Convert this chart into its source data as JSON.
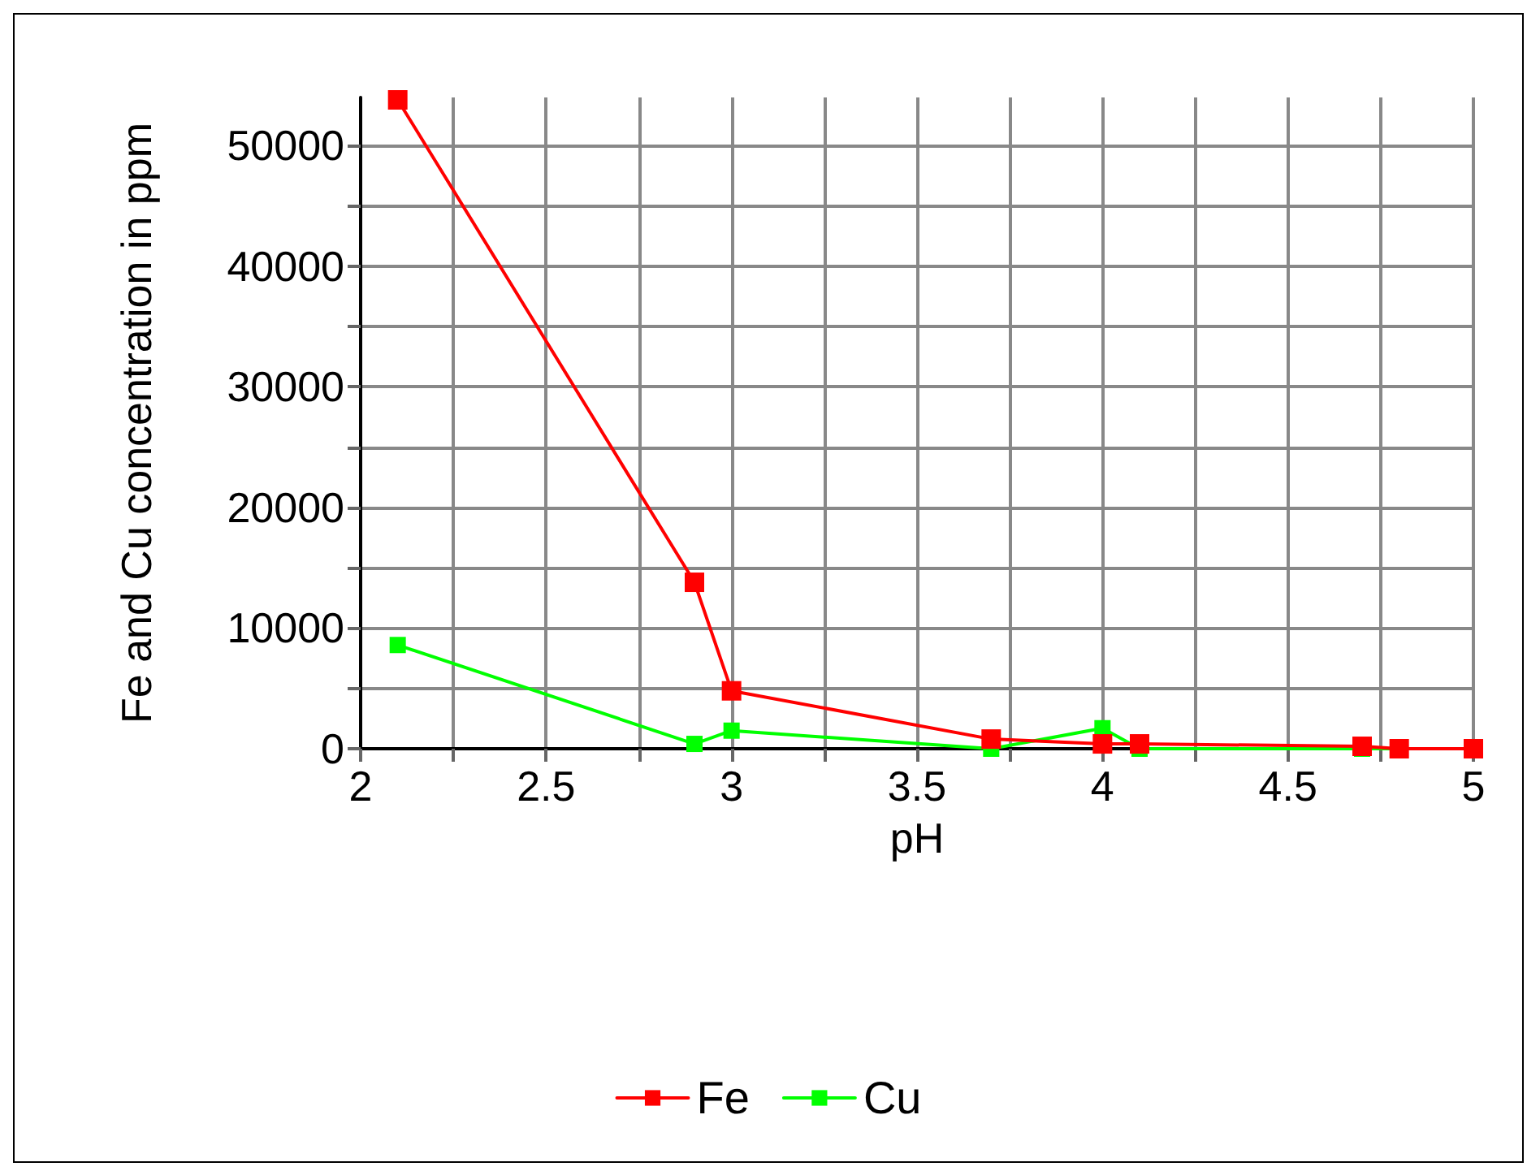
{
  "chart_data": {
    "type": "line",
    "xlabel": "pH",
    "ylabel": "Fe and Cu concentration in ppm",
    "x": [
      2.1,
      2.9,
      3.0,
      3.7,
      4.0,
      4.1,
      4.7,
      4.8,
      5.0
    ],
    "series": [
      {
        "name": "Fe",
        "color": "#ff0000",
        "values": [
          53800,
          13800,
          4800,
          800,
          400,
          400,
          200,
          0,
          0
        ]
      },
      {
        "name": "Cu",
        "color": "#00ff00",
        "values": [
          8600,
          400,
          1500,
          0,
          1700,
          0,
          0,
          0,
          0
        ]
      }
    ],
    "xlim": [
      2,
      5.0
    ],
    "xticks": [
      2,
      {
        "value": 2.25,
        "label": null
      },
      2.5,
      {
        "value": 2.75,
        "label": null
      },
      3,
      {
        "value": 3.25,
        "label": null
      },
      3.5,
      {
        "value": 3.75,
        "label": null
      },
      4,
      {
        "value": 4.25,
        "label": null
      },
      4.5,
      {
        "value": 4.75,
        "label": null
      },
      5
    ],
    "ylim": [
      0,
      54000
    ],
    "yticks": [
      0,
      {
        "value": 5000,
        "label": null
      },
      10000,
      {
        "value": 15000,
        "label": null
      },
      20000,
      {
        "value": 25000,
        "label": null
      },
      30000,
      {
        "value": 35000,
        "label": null
      },
      40000,
      {
        "value": 45000,
        "label": null
      },
      50000
    ],
    "grid": true,
    "legend": "bottom",
    "marker": "square",
    "line_style": "solid"
  }
}
